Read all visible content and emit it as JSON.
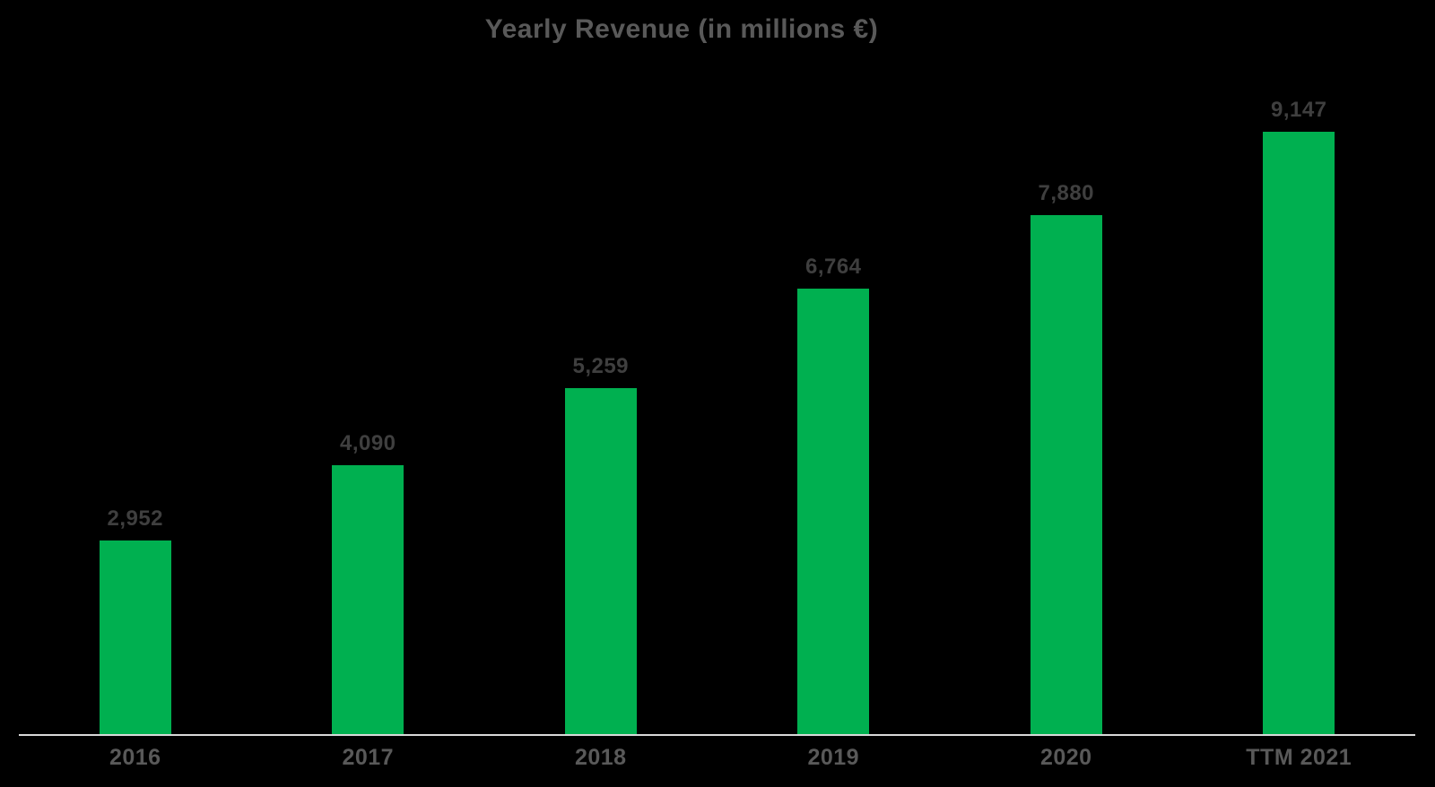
{
  "colors": {
    "background": "#000000",
    "bar": "#00B050",
    "title": "#595959",
    "data_label": "#3F3F3F",
    "tick_label": "#595959",
    "axis_line": "#D9D9D9"
  },
  "chart_data": {
    "type": "bar",
    "title": "Yearly Revenue (in millions €)",
    "categories": [
      "2016",
      "2017",
      "2018",
      "2019",
      "2020",
      "TTM 2021"
    ],
    "values": [
      2952,
      4090,
      5259,
      6764,
      7880,
      9147
    ],
    "value_labels": [
      "2,952",
      "4,090",
      "5,259",
      "6,764",
      "7,880",
      "9,147"
    ],
    "xlabel": "",
    "ylabel": "",
    "ylim": [
      0,
      10000
    ],
    "grid": false,
    "legend": false,
    "bar_color": "#00B050",
    "data_labels_position": "above-bars",
    "baseline_visible": true
  }
}
